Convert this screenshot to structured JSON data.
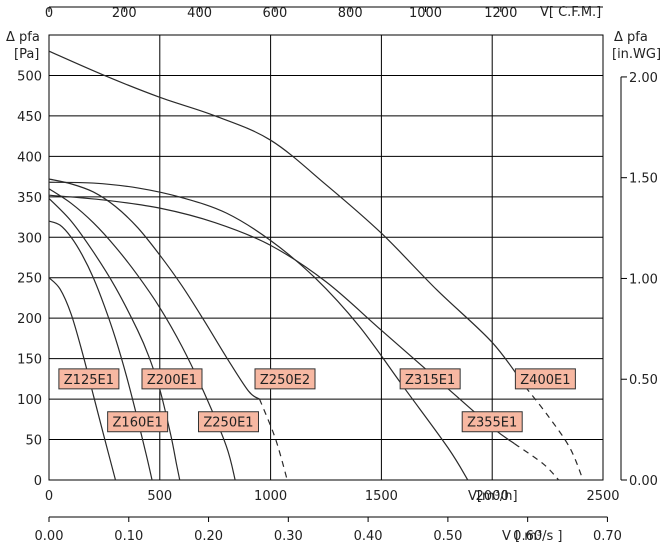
{
  "chart_data": {
    "type": "line",
    "title": "",
    "y_left_label": "Δ pfa",
    "y_left_unit": "[Pa]",
    "y_right_label": "Δ pfa",
    "y_right_unit": "[in.WG]",
    "x_main_label": "V[m³/h]",
    "x_top_label": "V[ C.F.M.]",
    "x_bottom_label": "V [ m³/s ]",
    "x_main_range": [
      0,
      2500
    ],
    "y_left_range": [
      0,
      550
    ],
    "x_main_ticks": [
      "0",
      "500",
      "1000",
      "1500",
      "2000",
      "2500"
    ],
    "x_top_ticks": [
      "0",
      "200",
      "400",
      "600",
      "800",
      "1000",
      "1200"
    ],
    "x_bottom_ticks": [
      "0.00",
      "0.10",
      "0.20",
      "0.30",
      "0.40",
      "0.50",
      "0.60",
      "0.70"
    ],
    "y_left_ticks": [
      "0",
      "50",
      "100",
      "150",
      "200",
      "250",
      "300",
      "350",
      "400",
      "450",
      "500"
    ],
    "y_right_ticks": [
      "0.00",
      "0.50",
      "1.00",
      "1.50",
      "2.00"
    ],
    "grid": true,
    "colors": {
      "curve": "#2a2a2a",
      "grid": "#000000",
      "label_fill": "#f7b8a2",
      "label_border": "#333333"
    },
    "series": [
      {
        "name": "Z125E1",
        "label_at": [
          180,
          125
        ],
        "points": [
          [
            0,
            250
          ],
          [
            50,
            236
          ],
          [
            100,
            205
          ],
          [
            150,
            158
          ],
          [
            200,
            105
          ],
          [
            250,
            52
          ],
          [
            300,
            0
          ]
        ]
      },
      {
        "name": "Z160E1",
        "label_at": [
          400,
          72
        ],
        "points": [
          [
            0,
            320
          ],
          [
            50,
            315
          ],
          [
            100,
            300
          ],
          [
            150,
            278
          ],
          [
            200,
            250
          ],
          [
            250,
            215
          ],
          [
            300,
            175
          ],
          [
            350,
            128
          ],
          [
            400,
            75
          ],
          [
            440,
            30
          ],
          [
            465,
            0
          ]
        ]
      },
      {
        "name": "Z200E1",
        "label_at": [
          555,
          125
        ],
        "points": [
          [
            0,
            348
          ],
          [
            100,
            320
          ],
          [
            200,
            282
          ],
          [
            300,
            238
          ],
          [
            400,
            185
          ],
          [
            450,
            153
          ],
          [
            500,
            112
          ],
          [
            550,
            55
          ],
          [
            575,
            20
          ],
          [
            590,
            0
          ]
        ]
      },
      {
        "name": "Z250E1",
        "label_at": [
          810,
          72
        ],
        "points": [
          [
            0,
            360
          ],
          [
            100,
            342
          ],
          [
            200,
            318
          ],
          [
            300,
            288
          ],
          [
            400,
            253
          ],
          [
            500,
            213
          ],
          [
            600,
            165
          ],
          [
            700,
            108
          ],
          [
            800,
            42
          ],
          [
            840,
            0
          ]
        ]
      },
      {
        "name": "Z250E2",
        "label_at": [
          1065,
          125
        ],
        "points": [
          [
            0,
            372
          ],
          [
            100,
            366
          ],
          [
            200,
            356
          ],
          [
            300,
            338
          ],
          [
            400,
            312
          ],
          [
            500,
            278
          ],
          [
            600,
            240
          ],
          [
            700,
            197
          ],
          [
            800,
            152
          ],
          [
            900,
            110
          ],
          [
            950,
            100
          ],
          [
            1010,
            60
          ],
          [
            1040,
            35
          ],
          [
            1075,
            0
          ]
        ],
        "dashed_from": 950
      },
      {
        "name": "Z315E1",
        "label_at": [
          1720,
          125
        ],
        "points": [
          [
            0,
            368
          ],
          [
            200,
            367
          ],
          [
            400,
            361
          ],
          [
            600,
            349
          ],
          [
            800,
            330
          ],
          [
            1000,
            296
          ],
          [
            1200,
            250
          ],
          [
            1400,
            190
          ],
          [
            1600,
            115
          ],
          [
            1800,
            40
          ],
          [
            1890,
            0
          ]
        ]
      },
      {
        "name": "Z355E1",
        "label_at": [
          2000,
          72
        ],
        "points": [
          [
            0,
            352
          ],
          [
            250,
            346
          ],
          [
            500,
            336
          ],
          [
            750,
            318
          ],
          [
            1000,
            290
          ],
          [
            1250,
            245
          ],
          [
            1500,
            185
          ],
          [
            1750,
            125
          ],
          [
            2000,
            65
          ],
          [
            2100,
            45
          ],
          [
            2230,
            20
          ],
          [
            2300,
            0
          ]
        ],
        "dashed_from": 2100
      },
      {
        "name": "Z400E1",
        "label_at": [
          2240,
          125
        ],
        "points": [
          [
            0,
            530
          ],
          [
            250,
            500
          ],
          [
            500,
            473
          ],
          [
            750,
            450
          ],
          [
            1000,
            420
          ],
          [
            1250,
            365
          ],
          [
            1500,
            305
          ],
          [
            1750,
            235
          ],
          [
            2000,
            170
          ],
          [
            2150,
            115
          ],
          [
            2250,
            80
          ],
          [
            2350,
            40
          ],
          [
            2410,
            0
          ]
        ],
        "dashed_from": 2150
      }
    ]
  }
}
